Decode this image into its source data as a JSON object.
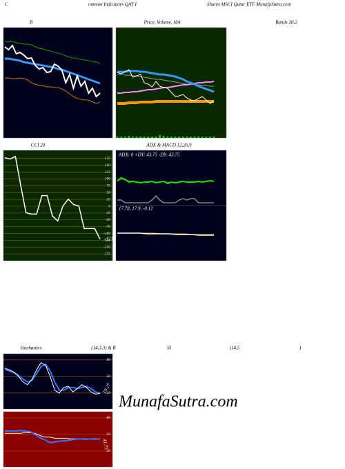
{
  "header": [
    "C",
    "ommon Indicators QAT I",
    "Shares MSCI Qatar ETF MunafaSutra.com"
  ],
  "watermark": "MunafaSutra.com",
  "chart_data": [
    {
      "type": "line",
      "title": "B",
      "subtitle": "Bands 20,2",
      "background": "#00001c",
      "ylim": [
        0,
        160
      ],
      "series": [
        {
          "color": "#00a000",
          "width": 1,
          "values": [
            140,
            139,
            140,
            138,
            137,
            136,
            136,
            135,
            132,
            130,
            129,
            127,
            126,
            124,
            123,
            121,
            119,
            117,
            116,
            115,
            114,
            113,
            112,
            111,
            110,
            108
          ]
        },
        {
          "color": "#cc7700",
          "width": 1,
          "values": [
            87,
            87,
            86,
            86,
            87,
            86,
            84,
            80,
            78,
            76,
            76,
            74,
            74,
            73,
            73,
            71,
            68,
            64,
            60,
            57,
            56,
            55,
            55,
            52,
            50,
            52
          ]
        },
        {
          "color": "#3399ff",
          "width": 3,
          "values": [
            115,
            115,
            114,
            113,
            112,
            110,
            109,
            108,
            107,
            106,
            105,
            104,
            103,
            102,
            100,
            99,
            97,
            95,
            93,
            91,
            89,
            87,
            85,
            83,
            81,
            79
          ]
        },
        {
          "color": "#ffffff",
          "width": 2,
          "values": [
            132,
            128,
            134,
            122,
            124,
            120,
            115,
            116,
            105,
            100,
            102,
            95,
            96,
            107,
            104,
            98,
            80,
            92,
            72,
            90,
            75,
            82,
            65,
            72,
            60,
            65
          ]
        }
      ]
    },
    {
      "type": "line",
      "title": "Price, Volume, MA",
      "background": "#0a2800",
      "ylim": [
        0,
        160
      ],
      "series": [
        {
          "type": "bar",
          "color": "#00cc00",
          "width": 1,
          "values": [
            2,
            2,
            2,
            3,
            2,
            2,
            2,
            2,
            2,
            2,
            2,
            4,
            3,
            2,
            2,
            2,
            2,
            2,
            2,
            2,
            2,
            2,
            2,
            2,
            2,
            2
          ]
        },
        {
          "color": "#999999",
          "width": 1,
          "values": [
            92,
            92,
            91,
            91,
            90,
            90,
            89,
            88,
            87,
            86,
            85,
            85,
            84,
            83,
            82,
            81,
            80,
            79,
            78,
            78,
            77,
            77,
            76,
            76,
            75,
            75
          ]
        },
        {
          "color": "#ff9900",
          "width": 4,
          "values": [
            50,
            50,
            50,
            51,
            51,
            51,
            52,
            52,
            52,
            52,
            53,
            53,
            53,
            53,
            53,
            53,
            53,
            53,
            53,
            53,
            53,
            53,
            53,
            53,
            53,
            53
          ]
        },
        {
          "color": "#ff88ff",
          "width": 2,
          "values": [
            65,
            65,
            66,
            66,
            67,
            67,
            68,
            69,
            70,
            70,
            71,
            72,
            73,
            73,
            74,
            75,
            76,
            77,
            77,
            78,
            79,
            80,
            80,
            81,
            81,
            82
          ]
        },
        {
          "color": "#3399ff",
          "width": 3,
          "values": [
            96,
            96,
            96,
            97,
            97,
            97,
            96,
            96,
            95,
            94,
            93,
            92,
            92,
            91,
            90,
            89,
            87,
            85,
            82,
            80,
            78,
            75,
            73,
            71,
            69,
            67
          ]
        },
        {
          "color": "#ffffff",
          "width": 1,
          "values": [
            95,
            93,
            96,
            99,
            88,
            90,
            92,
            80,
            78,
            74,
            82,
            75,
            73,
            72,
            66,
            60,
            61,
            63,
            58,
            55,
            54,
            57,
            60,
            55,
            50,
            53
          ]
        }
      ]
    },
    {
      "type": "line",
      "title": "CCI 20",
      "background": "#0a2800",
      "ylim": [
        -200,
        205
      ],
      "grid": true,
      "grid_color": "#8a6a00",
      "yticks": [
        175,
        150,
        125,
        100,
        75,
        50,
        25,
        0,
        -25,
        -50,
        -75,
        -100,
        -125,
        -150,
        -175
      ],
      "series": [
        {
          "color": "#ffffff",
          "width": 1.5,
          "values": [
            178,
            173,
            183,
            77,
            -24,
            -29,
            -29,
            39,
            39,
            -36,
            -54,
            1,
            26,
            6,
            1,
            -82,
            -82,
            -82,
            -121
          ]
        }
      ]
    },
    {
      "type": "line",
      "title": "ADX  & MACD 12,26,9",
      "annotation": "ADX: 0  +DY: 43.75 -DY: 43.75",
      "background": "#00001c",
      "ylim": [
        0,
        80
      ],
      "series": [
        {
          "color": "#888888",
          "width": 1.5,
          "values": [
            8,
            8,
            4,
            4,
            4,
            4,
            4,
            4,
            4,
            8,
            14,
            8,
            4,
            4,
            4,
            4,
            8,
            10,
            8,
            10,
            10,
            4,
            4,
            4,
            4,
            4
          ]
        },
        {
          "color": "#cc2200",
          "width": 1,
          "values": [
            36,
            38,
            37,
            36,
            35,
            34,
            34,
            34,
            35,
            35,
            34,
            34,
            35,
            34,
            34,
            34,
            34,
            35,
            34,
            34,
            34,
            34,
            34,
            35,
            35,
            35
          ]
        },
        {
          "color": "#00ee00",
          "width": 2,
          "values": [
            36,
            40,
            38,
            34,
            35,
            34,
            33,
            34,
            34,
            35,
            33,
            34,
            35,
            32,
            34,
            33,
            34,
            35,
            34,
            34,
            34,
            35,
            34,
            35,
            36,
            35
          ]
        }
      ]
    },
    {
      "type": "line",
      "annotation": "17.78, 17.9, -0.12",
      "background": "#00001c",
      "ylim": [
        0,
        80
      ],
      "series": [
        {
          "color": "#ff9900",
          "width": 1,
          "values": [
            40,
            40,
            40,
            40,
            40,
            40,
            39,
            39,
            39,
            39,
            38,
            38,
            38,
            38
          ]
        },
        {
          "color": "#ffffff",
          "width": 1.5,
          "values": [
            40,
            40,
            40,
            40,
            39,
            39,
            39,
            39,
            38,
            38,
            38,
            37,
            37,
            37
          ]
        }
      ]
    },
    {
      "type": "line",
      "title_parts": [
        "Stochastics",
        "(14,3,3) & R"
      ],
      "background": "#00001c",
      "ylim": [
        -9,
        91
      ],
      "grid": true,
      "grid_color": "#aa6a00",
      "yticks": [
        80,
        50,
        20
      ],
      "series": [
        {
          "color": "#3377ff",
          "width": 2,
          "values": [
            63,
            60,
            57,
            52,
            45,
            40,
            43,
            55,
            68,
            72,
            60,
            40,
            25,
            25,
            30,
            30,
            28,
            30,
            32,
            28,
            22,
            20
          ]
        },
        {
          "color": "#ffffff",
          "width": 1,
          "values": [
            65,
            62,
            58,
            50,
            40,
            35,
            45,
            62,
            75,
            70,
            50,
            25,
            20,
            30,
            32,
            22,
            28,
            35,
            30,
            22,
            18,
            19.27
          ]
        }
      ]
    },
    {
      "type": "line",
      "title_parts": [
        "SI",
        "(14,5",
        ")"
      ],
      "background": "#8b0000",
      "ylim": [
        -9,
        91
      ],
      "grid": true,
      "grid_color": "#aa5500",
      "yticks": [
        80,
        50,
        20
      ],
      "series": [
        {
          "color": "#ffffff",
          "width": 1,
          "values": [
            52,
            52,
            52,
            52,
            53,
            53,
            52,
            48,
            45,
            45,
            43,
            43,
            43,
            42,
            42,
            42,
            42,
            42,
            42,
            42
          ]
        },
        {
          "color": "#3377ff",
          "width": 2,
          "values": [
            56,
            56,
            56,
            57,
            56,
            55,
            50,
            44,
            40,
            35,
            36,
            38,
            38,
            40,
            41,
            42,
            41,
            42,
            41,
            41.75
          ]
        }
      ]
    }
  ]
}
